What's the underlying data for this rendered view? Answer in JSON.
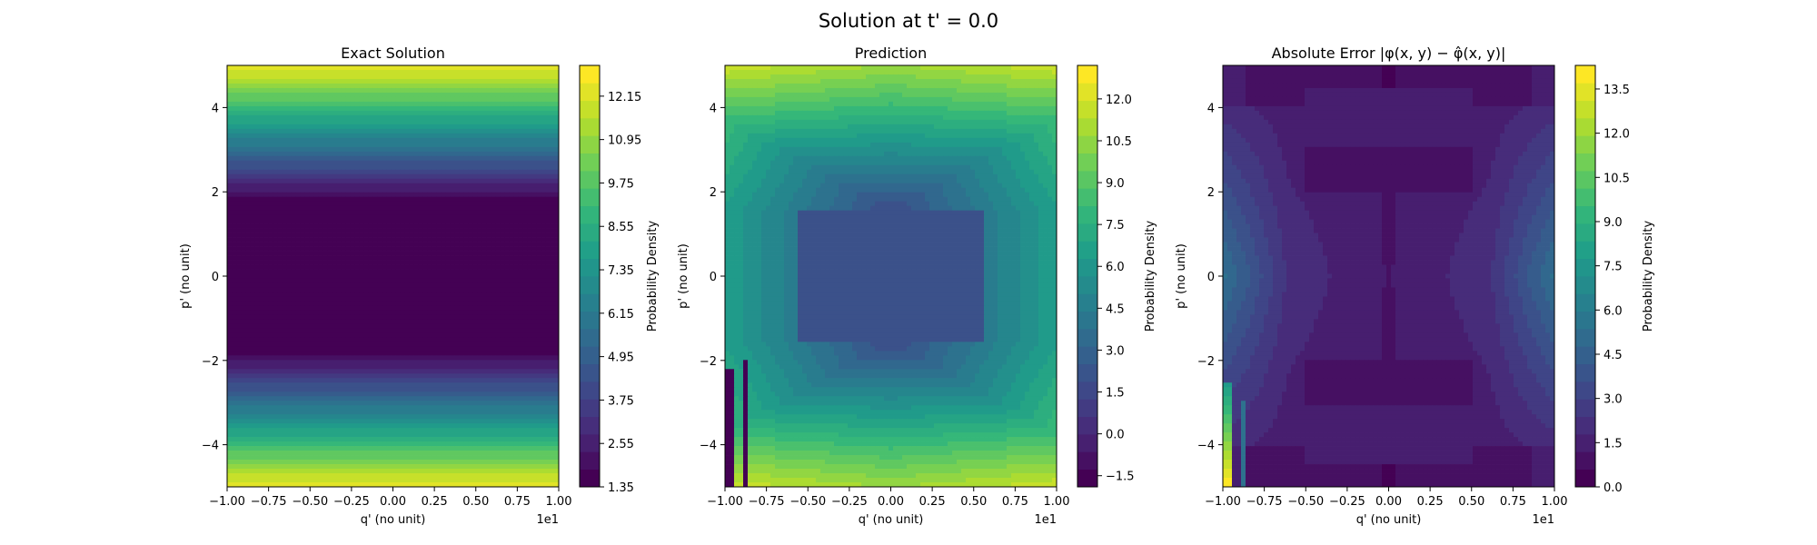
{
  "suptitle": "Solution at t' = 0.0",
  "colors": {
    "viridis": [
      "#440154",
      "#482878",
      "#3e4989",
      "#31688e",
      "#26828e",
      "#1f9e89",
      "#35b779",
      "#6ece58",
      "#b5de2b",
      "#fde725"
    ]
  },
  "chart_data": [
    {
      "type": "heatmap",
      "title": "Exact Solution",
      "xlabel": "q' (no unit)",
      "ylabel": "p' (no unit)",
      "x_offset_text": "1e1",
      "x_ticks": [
        "-1.00",
        "-0.75",
        "-0.50",
        "-0.25",
        "0.00",
        "0.25",
        "0.50",
        "0.75",
        "1.00"
      ],
      "y_ticks": [
        "-4",
        "-2",
        "0",
        "2",
        "4"
      ],
      "xlim": [
        -1.0,
        1.0
      ],
      "ylim": [
        -5,
        5
      ],
      "colorbar_label": "Probability Density",
      "colorbar_ticks": [
        "1.35",
        "2.55",
        "3.75",
        "4.95",
        "6.15",
        "7.35",
        "8.55",
        "9.75",
        "10.95",
        "12.15"
      ],
      "colorbar_range": [
        1.35,
        13.0
      ],
      "pattern": "horizontal-bands"
    },
    {
      "type": "heatmap",
      "title": "Prediction",
      "xlabel": "q' (no unit)",
      "ylabel": "p' (no unit)",
      "x_offset_text": "1e1",
      "x_ticks": [
        "-1.00",
        "-0.75",
        "-0.50",
        "-0.25",
        "0.00",
        "0.25",
        "0.50",
        "0.75",
        "1.00"
      ],
      "y_ticks": [
        "-4",
        "-2",
        "0",
        "2",
        "4"
      ],
      "xlim": [
        -1.0,
        1.0
      ],
      "ylim": [
        -5,
        5
      ],
      "colorbar_label": "Probability Density",
      "colorbar_ticks": [
        "-1.5",
        "0.0",
        "1.5",
        "3.0",
        "4.5",
        "6.0",
        "7.5",
        "9.0",
        "10.5",
        "12.0"
      ],
      "colorbar_range": [
        -1.9,
        13.2
      ],
      "pattern": "nested-rectangles"
    },
    {
      "type": "heatmap",
      "title": "Absolute Error |φ(x, y) − φ̂(x, y)|",
      "xlabel": "q' (no unit)",
      "ylabel": "p' (no unit)",
      "x_offset_text": "1e1",
      "x_ticks": [
        "-1.00",
        "-0.75",
        "-0.50",
        "-0.25",
        "0.00",
        "0.25",
        "0.50",
        "0.75",
        "1.00"
      ],
      "y_ticks": [
        "-4",
        "-2",
        "0",
        "2",
        "4"
      ],
      "xlim": [
        -1.0,
        1.0
      ],
      "ylim": [
        -5,
        5
      ],
      "colorbar_label": "Probability Density",
      "colorbar_ticks": [
        "0.0",
        "1.5",
        "3.0",
        "4.5",
        "6.0",
        "7.5",
        "9.0",
        "10.5",
        "12.0",
        "13.5"
      ],
      "colorbar_range": [
        0.0,
        14.3
      ],
      "pattern": "x-shaped-error"
    }
  ]
}
